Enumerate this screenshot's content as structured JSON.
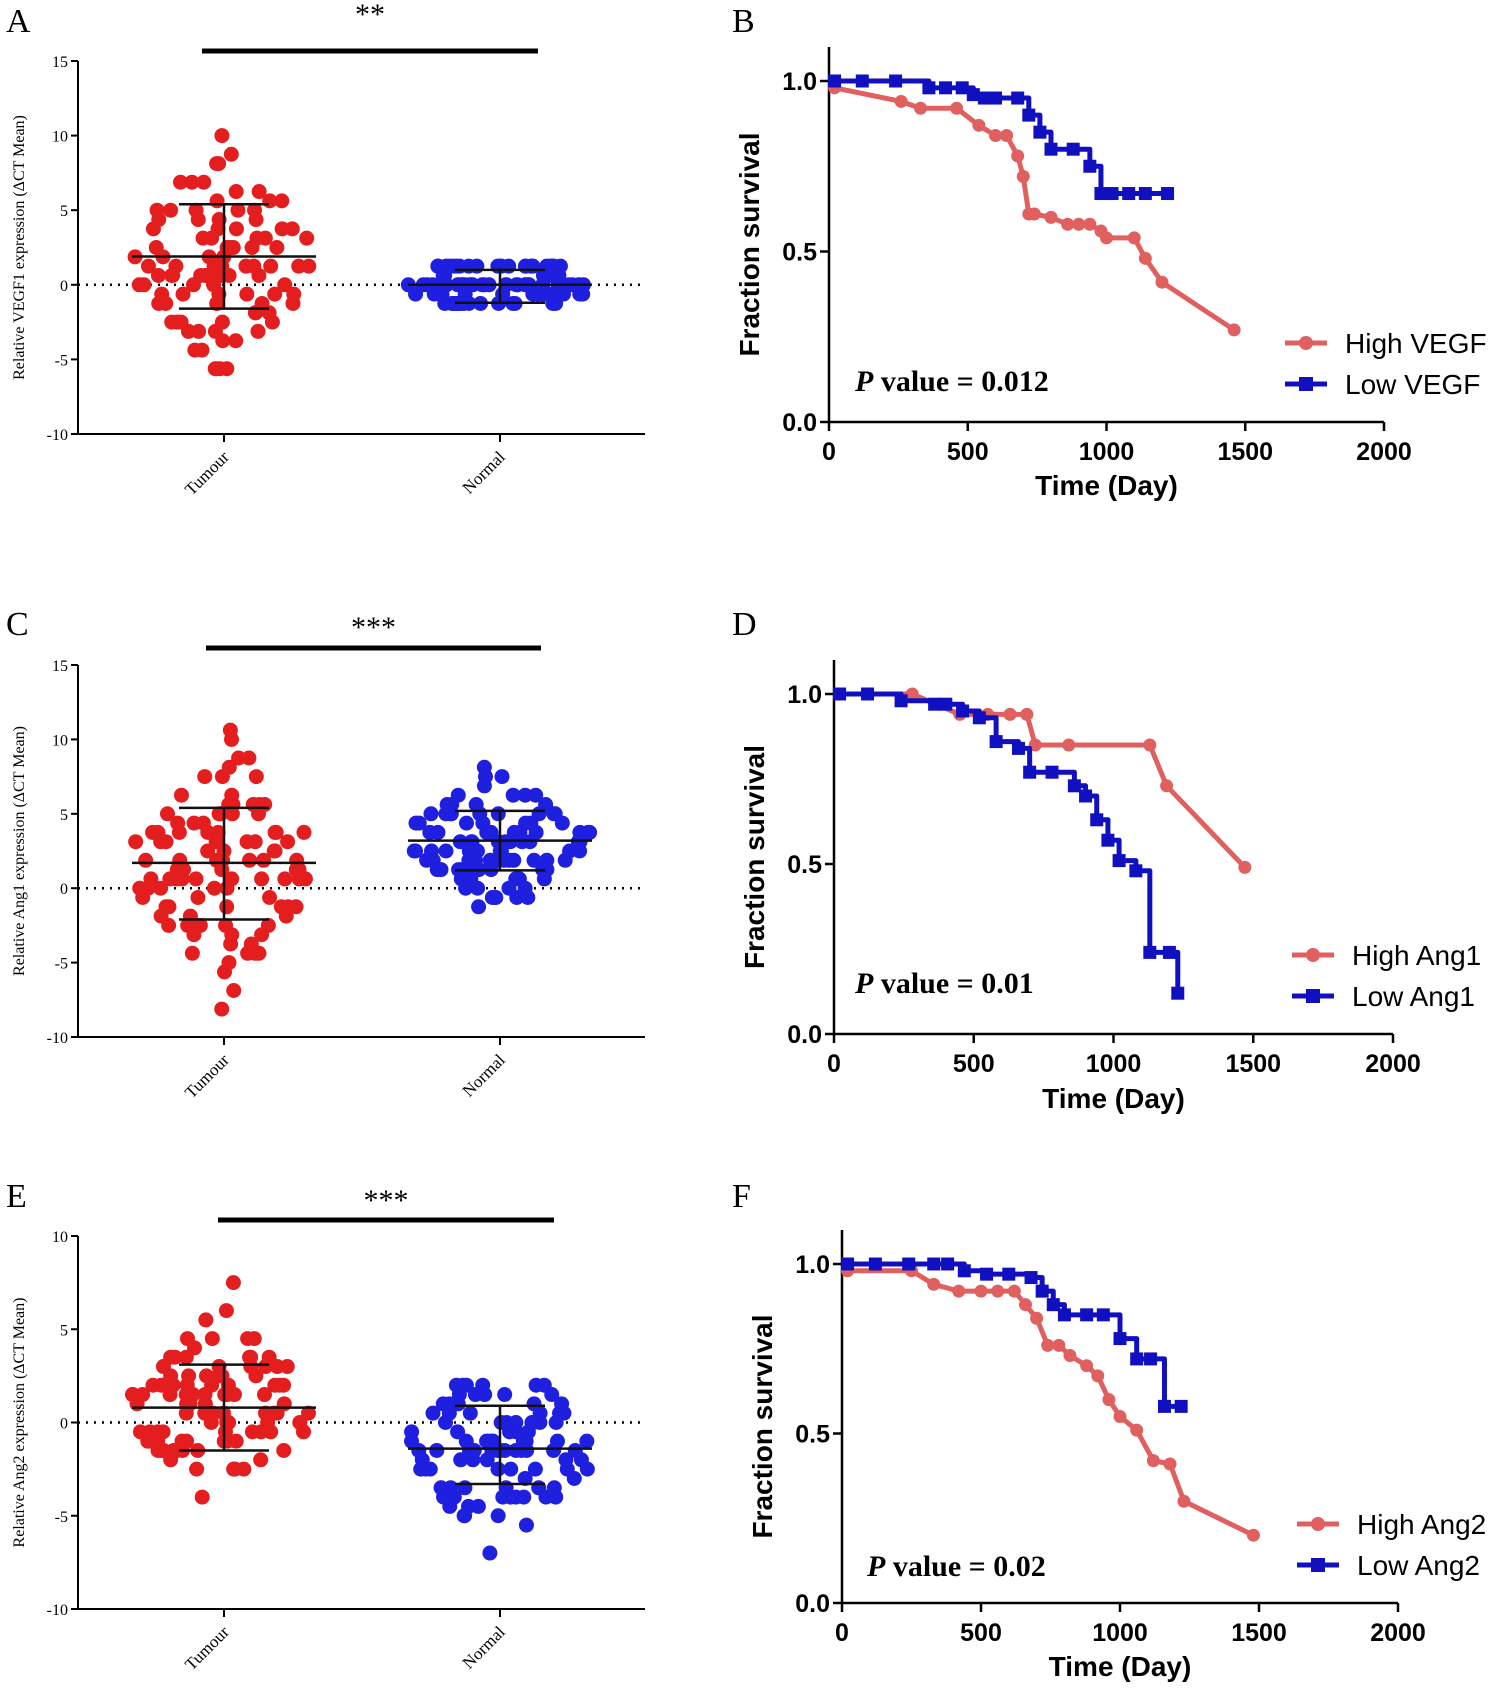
{
  "colors": {
    "tumour_dot": "#e41e1e",
    "normal_dot": "#1f1fe0",
    "high_line": "#e06060",
    "low_line": "#1010c0",
    "axis": "#000000"
  },
  "chart_data": [
    {
      "panel": "A",
      "type": "scatter",
      "ylabel": "Relative VEGF1 expression (ΔCT Mean)",
      "ylim": [
        -10,
        15
      ],
      "yticks": [
        -10,
        -5,
        0,
        5,
        10,
        15
      ],
      "categories": [
        "Tumour",
        "Normal"
      ],
      "significance": "**",
      "series": [
        {
          "name": "Tumour",
          "mean": 1.9,
          "sd_high": 5.4,
          "sd_low": -1.6,
          "ymin": -5.9,
          "ymax": 10.2,
          "n": 98,
          "shape": "spread"
        },
        {
          "name": "Normal",
          "mean": 0.0,
          "sd_high": 1.0,
          "sd_low": -1.2,
          "ymin": -2.2,
          "ymax": 1.5,
          "n": 92,
          "shape": "flat"
        }
      ]
    },
    {
      "panel": "B",
      "type": "line",
      "xlabel": "Time (Day)",
      "ylabel": "Fraction survival",
      "xlim": [
        0,
        2000
      ],
      "ylim": [
        0,
        1
      ],
      "xticks": [
        0,
        500,
        1000,
        1500,
        2000
      ],
      "yticks": [
        0.0,
        0.5,
        1.0
      ],
      "ytick_labels": [
        "0.0",
        "0.5",
        "1.0"
      ],
      "pvalue_italic": "P",
      "pvalue_text": " value = 0.012",
      "series": [
        {
          "name": "High VEGF",
          "x": [
            20,
            260,
            330,
            460,
            540,
            600,
            640,
            680,
            700,
            720,
            740,
            800,
            860,
            900,
            940,
            980,
            1000,
            1100,
            1140,
            1200,
            1460
          ],
          "y": [
            0.98,
            0.94,
            0.92,
            0.92,
            0.87,
            0.84,
            0.84,
            0.78,
            0.72,
            0.61,
            0.61,
            0.6,
            0.58,
            0.58,
            0.58,
            0.56,
            0.54,
            0.54,
            0.48,
            0.41,
            0.27
          ]
        },
        {
          "name": "Low VEGF",
          "x": [
            20,
            120,
            240,
            360,
            420,
            480,
            520,
            560,
            600,
            680,
            720,
            760,
            800,
            880,
            940,
            980,
            1020,
            1080,
            1140,
            1220
          ],
          "y": [
            1.0,
            1.0,
            1.0,
            0.98,
            0.98,
            0.98,
            0.96,
            0.95,
            0.95,
            0.95,
            0.9,
            0.85,
            0.8,
            0.8,
            0.75,
            0.67,
            0.67,
            0.67,
            0.67,
            0.67
          ]
        }
      ]
    },
    {
      "panel": "C",
      "type": "scatter",
      "ylabel": "Relative Ang1 expression (ΔCT Mean)",
      "ylim": [
        -10,
        15
      ],
      "yticks": [
        -10,
        -5,
        0,
        5,
        10,
        15
      ],
      "categories": [
        "Tumour",
        "Normal"
      ],
      "significance": "***",
      "series": [
        {
          "name": "Tumour",
          "mean": 1.7,
          "sd_high": 5.4,
          "sd_low": -2.1,
          "ymin": -8.1,
          "ymax": 10.5,
          "n": 100,
          "shape": "spread"
        },
        {
          "name": "Normal",
          "mean": 3.2,
          "sd_high": 5.2,
          "sd_low": 1.2,
          "ymin": -1.4,
          "ymax": 7.9,
          "n": 96,
          "shape": "spread"
        }
      ]
    },
    {
      "panel": "D",
      "type": "line",
      "xlabel": "Time (Day)",
      "ylabel": "Fraction survival",
      "xlim": [
        0,
        2000
      ],
      "ylim": [
        0,
        1
      ],
      "xticks": [
        0,
        500,
        1000,
        1500,
        2000
      ],
      "yticks": [
        0.0,
        0.5,
        1.0
      ],
      "ytick_labels": [
        "0.0",
        "0.5",
        "1.0"
      ],
      "pvalue_italic": "P",
      "pvalue_text": " value = 0.01",
      "series": [
        {
          "name": "High Ang1",
          "x": [
            20,
            280,
            450,
            550,
            630,
            690,
            720,
            840,
            1130,
            1190,
            1470
          ],
          "y": [
            1.0,
            1.0,
            0.94,
            0.94,
            0.94,
            0.94,
            0.85,
            0.85,
            0.85,
            0.73,
            0.49
          ]
        },
        {
          "name": "Low Ang1",
          "x": [
            20,
            120,
            240,
            360,
            400,
            460,
            520,
            580,
            660,
            700,
            780,
            860,
            900,
            940,
            980,
            1020,
            1080,
            1130,
            1200,
            1230
          ],
          "y": [
            1.0,
            1.0,
            0.98,
            0.97,
            0.97,
            0.95,
            0.93,
            0.86,
            0.84,
            0.77,
            0.77,
            0.73,
            0.7,
            0.63,
            0.57,
            0.51,
            0.48,
            0.24,
            0.24,
            0.12
          ]
        }
      ]
    },
    {
      "panel": "E",
      "type": "scatter",
      "ylabel": "Relative Ang2 expression (ΔCT Mean)",
      "ylim": [
        -10,
        10
      ],
      "yticks": [
        -10,
        -5,
        0,
        5,
        10
      ],
      "categories": [
        "Tumour",
        "Normal"
      ],
      "significance": "***",
      "series": [
        {
          "name": "Tumour",
          "mean": 0.8,
          "sd_high": 3.1,
          "sd_low": -1.5,
          "ymin": -4.0,
          "ymax": 7.3,
          "n": 98,
          "shape": "spread"
        },
        {
          "name": "Normal",
          "mean": -1.4,
          "sd_high": 0.9,
          "sd_low": -3.3,
          "ymin": -6.8,
          "ymax": 2.1,
          "n": 96,
          "shape": "spread"
        }
      ]
    },
    {
      "panel": "F",
      "type": "line",
      "xlabel": "Time (Day)",
      "ylabel": "Fraction survival",
      "xlim": [
        0,
        2000
      ],
      "ylim": [
        0,
        1
      ],
      "xticks": [
        0,
        500,
        1000,
        1500,
        2000
      ],
      "yticks": [
        0.0,
        0.5,
        1.0
      ],
      "ytick_labels": [
        "0.0",
        "0.5",
        "1.0"
      ],
      "pvalue_italic": "P",
      "pvalue_text": " value = 0.02",
      "series": [
        {
          "name": "High Ang2",
          "x": [
            20,
            250,
            330,
            420,
            500,
            560,
            620,
            660,
            700,
            740,
            780,
            820,
            880,
            920,
            960,
            1000,
            1060,
            1120,
            1180,
            1230,
            1480
          ],
          "y": [
            0.98,
            0.98,
            0.94,
            0.92,
            0.92,
            0.92,
            0.92,
            0.88,
            0.84,
            0.76,
            0.76,
            0.73,
            0.7,
            0.67,
            0.6,
            0.55,
            0.51,
            0.42,
            0.41,
            0.3,
            0.2
          ]
        },
        {
          "name": "Low Ang2",
          "x": [
            20,
            120,
            240,
            330,
            380,
            440,
            520,
            600,
            680,
            720,
            760,
            800,
            880,
            940,
            1000,
            1060,
            1110,
            1160,
            1220
          ],
          "y": [
            1.0,
            1.0,
            1.0,
            1.0,
            1.0,
            0.98,
            0.97,
            0.97,
            0.96,
            0.92,
            0.88,
            0.85,
            0.85,
            0.85,
            0.78,
            0.72,
            0.72,
            0.58,
            0.58
          ]
        }
      ]
    }
  ]
}
